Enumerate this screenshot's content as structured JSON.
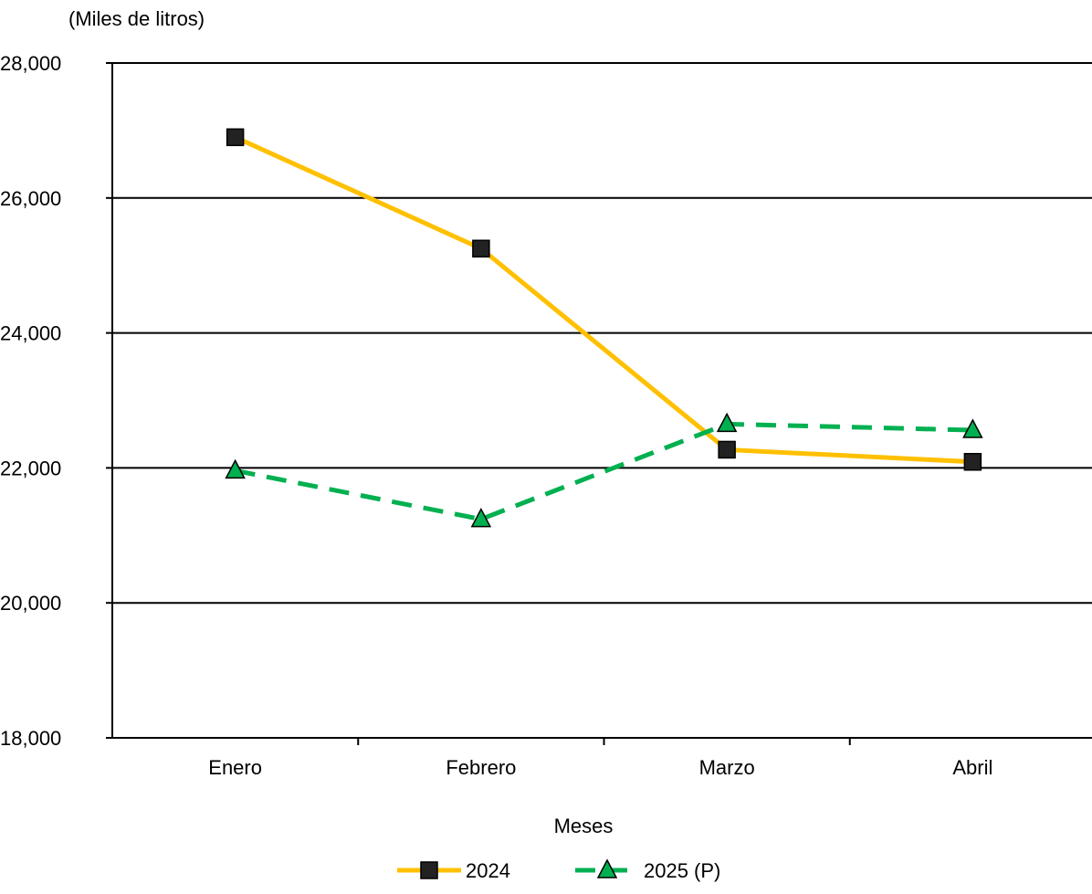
{
  "chart_data": {
    "type": "line",
    "ylabel": "(Miles de litros)",
    "xlabel": "Meses",
    "categories": [
      "Enero",
      "Febrero",
      "Marzo",
      "Abril"
    ],
    "yticks": [
      "18,000",
      "20,000",
      "22,000",
      "24,000",
      "26,000",
      "28,000"
    ],
    "ylim": [
      18000,
      28000
    ],
    "grid": true,
    "legend_position": "bottom",
    "series": [
      {
        "name": "2024",
        "values": [
          26900,
          25250,
          22270,
          22090
        ],
        "color": "#FFC000",
        "marker": "square",
        "dash": "solid"
      },
      {
        "name": "2025 (P)",
        "values": [
          21960,
          21240,
          22650,
          22560
        ],
        "color": "#00B050",
        "marker": "triangle",
        "dash": "dashed"
      }
    ]
  }
}
